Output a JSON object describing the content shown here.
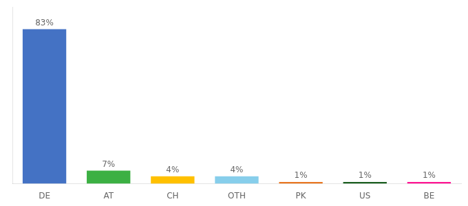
{
  "chart_data": {
    "type": "bar",
    "categories": [
      "DE",
      "AT",
      "CH",
      "OTH",
      "PK",
      "US",
      "BE"
    ],
    "values": [
      83,
      7,
      4,
      4,
      1,
      1,
      1
    ],
    "value_labels": [
      "83%",
      "7%",
      "4%",
      "4%",
      "1%",
      "1%",
      "1%"
    ],
    "colors": [
      "#4472C4",
      "#3CB043",
      "#FFC000",
      "#87CEEB",
      "#E87722",
      "#1B5E20",
      "#FF1493"
    ],
    "ylim": [
      0,
      95
    ],
    "grid": false,
    "tick_labels": "x",
    "data_labels": true
  }
}
